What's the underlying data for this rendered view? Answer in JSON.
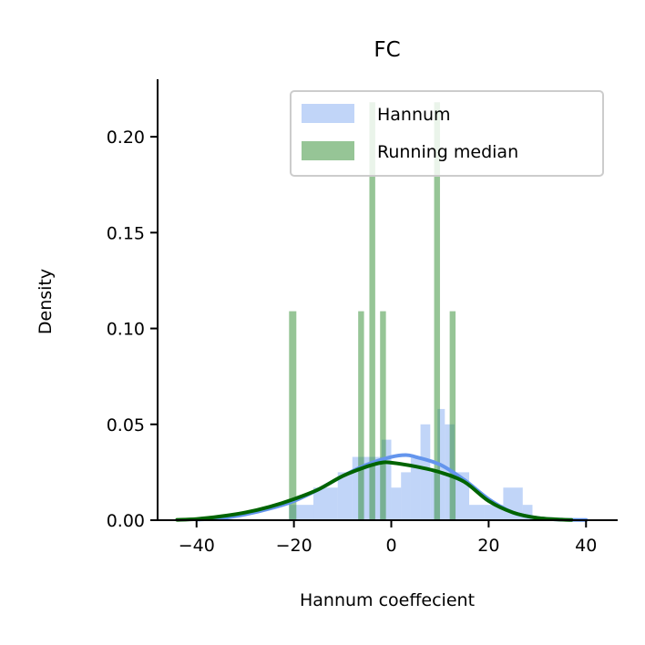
{
  "chart_data": {
    "type": "histogram",
    "title": "FC",
    "xlabel": "Hannum coeffecient",
    "ylabel": "Density",
    "xlim": [
      -48,
      46.5
    ],
    "ylim": [
      0,
      0.23
    ],
    "xticks": [
      -40,
      -20,
      0,
      20,
      40
    ],
    "xtick_labels": [
      "−40",
      "−20",
      "0",
      "20",
      "40"
    ],
    "yticks": [
      0.0,
      0.05,
      0.1,
      0.15,
      0.2
    ],
    "ytick_labels": [
      "0.00",
      "0.05",
      "0.10",
      "0.15",
      "0.20"
    ],
    "grid": false,
    "legend_position": "top-right",
    "series": [
      {
        "name": "Hannum",
        "color": "#6495ED",
        "bar_opacity": 0.4,
        "bins": [
          {
            "x0": -21,
            "x1": -16,
            "value": 0.008
          },
          {
            "x0": -16,
            "x1": -11,
            "value": 0.017
          },
          {
            "x0": -11,
            "x1": -8,
            "value": 0.025
          },
          {
            "x0": -8,
            "x1": -5,
            "value": 0.033
          },
          {
            "x0": -5,
            "x1": -2,
            "value": 0.033
          },
          {
            "x0": -2,
            "x1": 0,
            "value": 0.042
          },
          {
            "x0": 0,
            "x1": 2,
            "value": 0.017
          },
          {
            "x0": 2,
            "x1": 4,
            "value": 0.025
          },
          {
            "x0": 4,
            "x1": 6,
            "value": 0.033
          },
          {
            "x0": 6,
            "x1": 8,
            "value": 0.05
          },
          {
            "x0": 8,
            "x1": 9.5,
            "value": 0.025
          },
          {
            "x0": 9.5,
            "x1": 11,
            "value": 0.058
          },
          {
            "x0": 11,
            "x1": 13,
            "value": 0.05
          },
          {
            "x0": 13,
            "x1": 16,
            "value": 0.025
          },
          {
            "x0": 16,
            "x1": 19,
            "value": 0.008
          },
          {
            "x0": 19,
            "x1": 23,
            "value": 0.008
          },
          {
            "x0": 23,
            "x1": 27,
            "value": 0.017
          },
          {
            "x0": 27,
            "x1": 29,
            "value": 0.008
          }
        ],
        "kde": {
          "color": "#6495ED",
          "x": [
            -40,
            -35,
            -30,
            -25,
            -20,
            -15,
            -10,
            -5,
            0,
            3,
            5,
            10,
            15,
            20,
            25,
            30,
            35,
            40
          ],
          "y": [
            0.0003,
            0.001,
            0.003,
            0.006,
            0.01,
            0.016,
            0.023,
            0.029,
            0.033,
            0.034,
            0.033,
            0.029,
            0.021,
            0.011,
            0.004,
            0.0012,
            0.0003,
            0.0001
          ]
        }
      },
      {
        "name": "Running median",
        "color": "#2E8B2E",
        "bar_opacity": 0.5,
        "bins": [
          {
            "x0": -21,
            "x1": -19.5,
            "value": 0.109
          },
          {
            "x0": -6.8,
            "x1": -5.6,
            "value": 0.109
          },
          {
            "x0": -4.5,
            "x1": -3.3,
            "value": 0.218
          },
          {
            "x0": -2.3,
            "x1": -1.1,
            "value": 0.109
          },
          {
            "x0": 8.8,
            "x1": 10,
            "value": 0.218
          },
          {
            "x0": 12,
            "x1": 13.2,
            "value": 0.109
          }
        ],
        "kde": {
          "color": "#006400",
          "x": [
            -44,
            -40,
            -35,
            -30,
            -25,
            -20,
            -15,
            -10,
            -5,
            -2,
            0,
            5,
            10,
            15,
            20,
            25,
            30,
            35,
            37
          ],
          "y": [
            0.0002,
            0.0006,
            0.002,
            0.004,
            0.007,
            0.011,
            0.016,
            0.023,
            0.028,
            0.03,
            0.03,
            0.028,
            0.025,
            0.02,
            0.01,
            0.004,
            0.0012,
            0.0003,
            0.0001
          ]
        }
      }
    ]
  }
}
